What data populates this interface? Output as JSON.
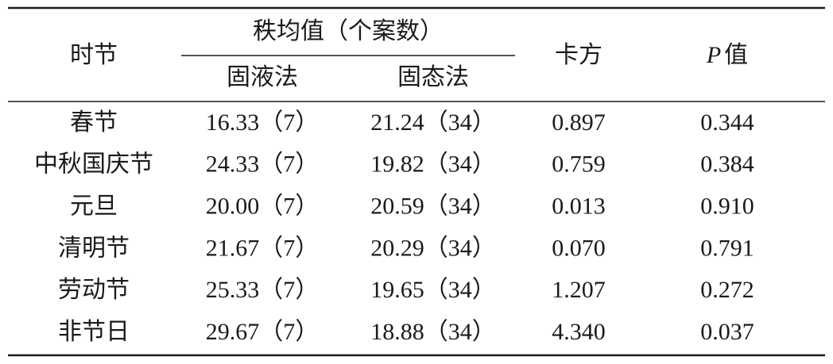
{
  "table": {
    "header": {
      "period": "时节",
      "group": "秩均值（个案数）",
      "solid_liquid": "固液法",
      "solid": "固态法",
      "chi_square": "卡方",
      "p_value": {
        "italic": "P",
        "text": "值"
      }
    },
    "rows": [
      [
        "春节",
        "16.33（7）",
        "21.24（34）",
        "0.897",
        "0.344"
      ],
      [
        "中秋国庆节",
        "24.33（7）",
        "19.82（34）",
        "0.759",
        "0.384"
      ],
      [
        "元旦",
        "20.00（7）",
        "20.59（34）",
        "0.013",
        "0.910"
      ],
      [
        "清明节",
        "21.67（7）",
        "20.29（34）",
        "0.070",
        "0.791"
      ],
      [
        "劳动节",
        "25.33（7）",
        "19.65（34）",
        "1.207",
        "0.272"
      ],
      [
        "非节日",
        "29.67（7）",
        "18.88（34）",
        "4.340",
        "0.037"
      ]
    ]
  }
}
